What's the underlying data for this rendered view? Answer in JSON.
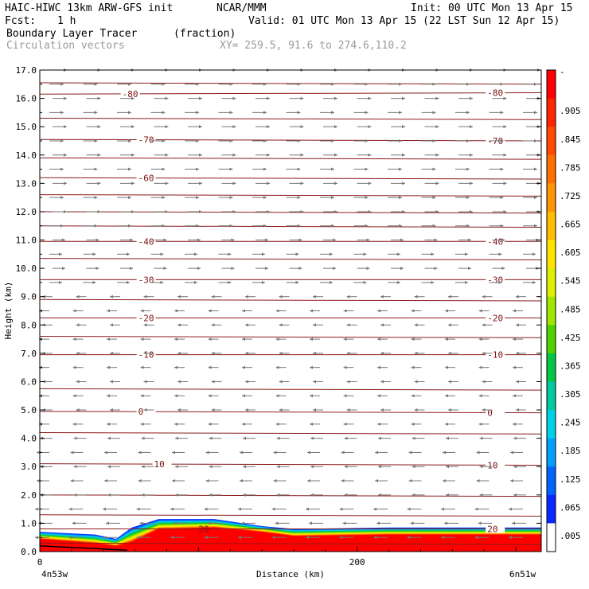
{
  "header": {
    "model": "HAIC-HIWC 13km ARW-GFS init",
    "org": "NCAR/MMM",
    "init": "Init: 00 UTC Mon 13 Apr 15",
    "fcst_label": "Fcst:",
    "fcst_value": "1 h",
    "valid": "Valid: 01 UTC Mon 13 Apr 15 (22 LST Sun 12 Apr 15)",
    "field": "Boundary Layer Tracer",
    "units": "(fraction)",
    "vectors": "Circulation vectors",
    "xy": "XY= 259.5, 91.6 to 274.6,110.2"
  },
  "chart_data": {
    "type": "heatmap",
    "ylabel": "Height (km)",
    "xlabel": "Distance (km)",
    "x_left_label": "4n53w",
    "x_right_label": "6n51w",
    "x_ticks": [
      {
        "value": 0,
        "label": "0"
      },
      {
        "value": 200,
        "label": "200"
      }
    ],
    "xlim": [
      0,
      316
    ],
    "ylim": [
      0,
      17
    ],
    "y_ticks": [
      "0.0",
      "1.0",
      "2.0",
      "3.0",
      "4.0",
      "5.0",
      "6.0",
      "7.0",
      "8.0",
      "9.0",
      "10.0",
      "11.0",
      "12.0",
      "13.0",
      "14.0",
      "15.0",
      "16.0",
      "17.0"
    ],
    "colorbar": {
      "levels": [
        "-",
        ".905",
        ".845",
        ".785",
        ".725",
        ".665",
        ".605",
        ".545",
        ".485",
        ".425",
        ".365",
        ".305",
        ".245",
        ".185",
        ".125",
        ".065",
        ".005"
      ],
      "colors": [
        "#ff0000",
        "#ff2400",
        "#ff4a00",
        "#ff7000",
        "#ff9600",
        "#ffbe00",
        "#ffe400",
        "#dcf000",
        "#a0e600",
        "#50d200",
        "#00c846",
        "#00c8a0",
        "#00d2e6",
        "#00a0ff",
        "#0064ff",
        "#0a28ff",
        "#ffffff"
      ]
    },
    "contours": [
      {
        "value": 80,
        "label": "-80",
        "label_x": [
          52,
          282
        ],
        "y": [
          16.15,
          16.2
        ]
      },
      {
        "value": 70,
        "label": "-70",
        "label_x": [
          62,
          282
        ],
        "y": [
          14.55,
          14.5
        ]
      },
      {
        "value": 60,
        "label": "-60",
        "label_x": [
          62
        ],
        "y": [
          13.2,
          13.15
        ]
      },
      {
        "value": 40,
        "label": "-40",
        "label_x": [
          62,
          282
        ],
        "y": [
          10.95,
          10.95
        ]
      },
      {
        "value": 30,
        "label": "-30",
        "label_x": [
          62,
          282
        ],
        "y": [
          9.6,
          9.6
        ]
      },
      {
        "value": 20,
        "label": "-20",
        "label_x": [
          62,
          282
        ],
        "y": [
          8.25,
          8.25
        ]
      },
      {
        "value": 10,
        "label": "-10",
        "label_x": [
          62,
          282
        ],
        "y": [
          6.95,
          6.95
        ]
      },
      {
        "value": 0,
        "label": "0",
        "label_x": [
          62,
          282
        ],
        "y": [
          4.95,
          4.9
        ]
      },
      {
        "value": -10,
        "label": "10",
        "label_x": [
          72,
          282
        ],
        "y": [
          3.1,
          3.05
        ]
      },
      {
        "value": -20,
        "label": "20",
        "label_x": [
          100,
          282
        ],
        "y": [
          0.8,
          0.8
        ]
      }
    ],
    "isolines_y": [
      16.55,
      15.3,
      13.9,
      12.6,
      12.0,
      11.5,
      10.35,
      8.9,
      7.6,
      5.75,
      4.2,
      2.0,
      1.3,
      0.3
    ],
    "tracer_profile": [
      {
        "x": 0,
        "top": 0.7,
        "core": 0.45
      },
      {
        "x": 35,
        "top": 0.6,
        "core": 0.3
      },
      {
        "x": 48,
        "top": 0.45,
        "core": 0.2
      },
      {
        "x": 58,
        "top": 0.85,
        "core": 0.35
      },
      {
        "x": 75,
        "top": 1.15,
        "core": 0.8
      },
      {
        "x": 110,
        "top": 1.15,
        "core": 0.85
      },
      {
        "x": 140,
        "top": 0.9,
        "core": 0.7
      },
      {
        "x": 160,
        "top": 0.8,
        "core": 0.55
      },
      {
        "x": 220,
        "top": 0.85,
        "core": 0.6
      },
      {
        "x": 316,
        "top": 0.85,
        "core": 0.6
      }
    ]
  }
}
